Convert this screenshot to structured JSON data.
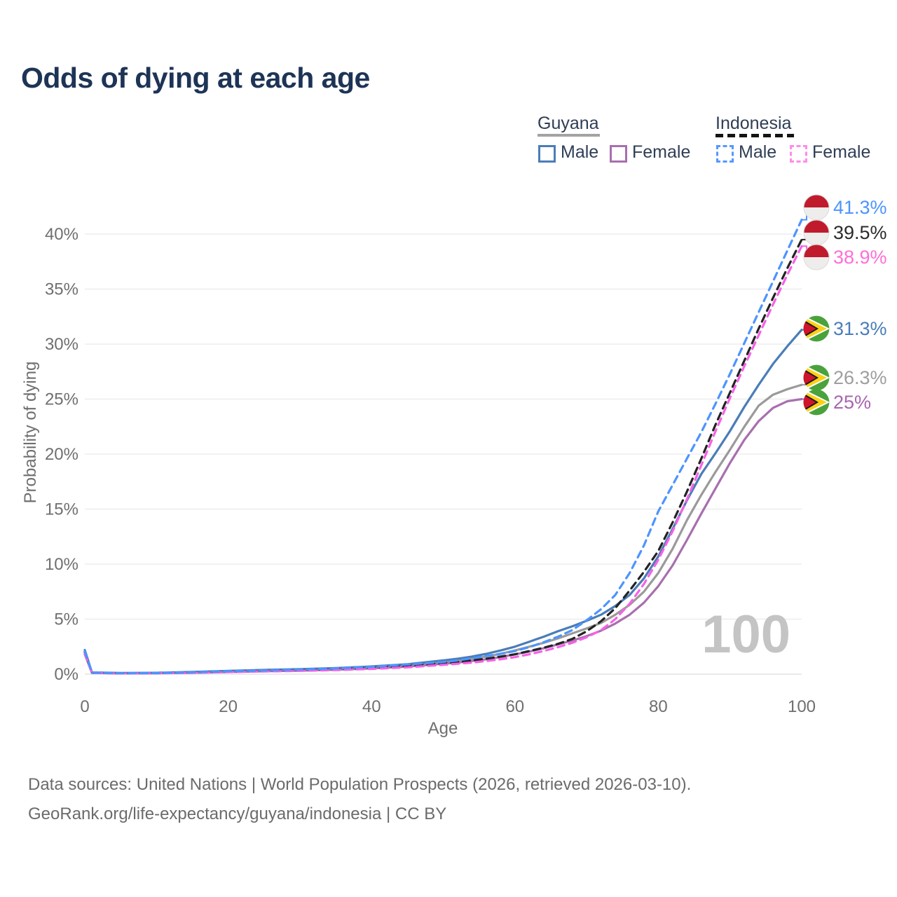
{
  "title": "Odds of dying at each age",
  "watermark": "100",
  "legend": {
    "guyana": {
      "label": "Guyana",
      "male": "Male",
      "female": "Female"
    },
    "indonesia": {
      "label": "Indonesia",
      "male": "Male",
      "female": "Female"
    }
  },
  "footer": {
    "line1": "Data sources: United Nations | World Population Prospects (2026, retrieved 2026-03-10).",
    "line2": "GeoRank.org/life-expectancy/guyana/indonesia | CC BY"
  },
  "colors": {
    "title_text": "#1d3456",
    "axis_text": "#6f6f6f",
    "gridline": "#ededed",
    "watermark": "#c4c4c4",
    "guyana_male": "#4a7db8",
    "guyana_female": "#a86fae",
    "guyana_both": "#9a9a9a",
    "indonesia_male": "#4d94ff",
    "indonesia_female": "#f661e7",
    "indonesia_both": "#232323"
  },
  "chart_data": {
    "type": "line",
    "title": "Odds of dying at each age",
    "xlabel": "Age",
    "ylabel": "Probability of dying",
    "xlim": [
      0,
      100
    ],
    "ylim": [
      0,
      40
    ],
    "grid": "horizontal-only",
    "legend_position": "top-right",
    "x_ticks": {
      "values": [
        0,
        20,
        40,
        60,
        80,
        100
      ],
      "labels": [
        "0",
        "20",
        "40",
        "60",
        "80",
        "100"
      ]
    },
    "y_ticks": {
      "values": [
        0,
        5,
        10,
        15,
        20,
        25,
        30,
        35,
        40
      ],
      "labels": [
        "0%",
        "5%",
        "10%",
        "15%",
        "20%",
        "25%",
        "30%",
        "35%",
        "40%"
      ]
    },
    "ages": [
      0,
      1,
      5,
      10,
      15,
      20,
      25,
      30,
      35,
      40,
      45,
      50,
      52,
      54,
      56,
      58,
      60,
      62,
      64,
      66,
      68,
      70,
      72,
      74,
      76,
      78,
      80,
      82,
      84,
      86,
      88,
      90,
      92,
      94,
      96,
      98,
      100
    ],
    "series": [
      {
        "id": "guyana-total",
        "name": "Guyana (both sexes)",
        "country": "Guyana",
        "style": "solid",
        "color": "#9a9a9a",
        "values": [
          2.0,
          0.13,
          0.085,
          0.1,
          0.16,
          0.25,
          0.32,
          0.38,
          0.47,
          0.6,
          0.78,
          1.1,
          1.22,
          1.4,
          1.6,
          1.85,
          2.15,
          2.5,
          2.85,
          3.25,
          3.7,
          4.15,
          4.65,
          5.4,
          6.3,
          7.5,
          9.2,
          11.4,
          14.0,
          16.3,
          18.4,
          20.4,
          22.5,
          24.4,
          25.4,
          25.9,
          26.3
        ],
        "end_label": "26.3%"
      },
      {
        "id": "guyana-female",
        "name": "Guyana Female",
        "country": "Guyana",
        "style": "solid",
        "color": "#a86fae",
        "values": [
          1.8,
          0.12,
          0.07,
          0.09,
          0.13,
          0.2,
          0.26,
          0.32,
          0.4,
          0.52,
          0.68,
          0.95,
          1.05,
          1.2,
          1.35,
          1.55,
          1.8,
          2.05,
          2.35,
          2.7,
          3.05,
          3.45,
          3.95,
          4.6,
          5.4,
          6.5,
          8.0,
          9.9,
          12.2,
          14.6,
          16.9,
          19.2,
          21.3,
          23.0,
          24.2,
          24.8,
          25.0
        ],
        "end_label": "25%"
      },
      {
        "id": "guyana-male",
        "name": "Guyana Male",
        "country": "Guyana",
        "style": "solid",
        "color": "#4a7db8",
        "values": [
          2.2,
          0.15,
          0.1,
          0.12,
          0.2,
          0.3,
          0.38,
          0.45,
          0.55,
          0.7,
          0.9,
          1.25,
          1.4,
          1.6,
          1.85,
          2.15,
          2.5,
          2.95,
          3.4,
          3.9,
          4.35,
          4.85,
          5.4,
          6.2,
          7.2,
          8.7,
          10.7,
          13.2,
          15.8,
          18.2,
          20.1,
          22.1,
          24.3,
          26.3,
          28.2,
          29.8,
          31.3
        ],
        "end_label": "31.3%"
      },
      {
        "id": "indonesia-total",
        "name": "Indonesia (both sexes)",
        "country": "Indonesia",
        "style": "dashed",
        "color": "#232323",
        "values": [
          2.0,
          0.13,
          0.075,
          0.095,
          0.15,
          0.23,
          0.3,
          0.36,
          0.45,
          0.58,
          0.75,
          1.0,
          1.1,
          1.25,
          1.4,
          1.6,
          1.8,
          2.1,
          2.4,
          2.75,
          3.2,
          3.9,
          4.8,
          6.0,
          7.6,
          9.3,
          11.2,
          13.8,
          16.6,
          19.6,
          22.7,
          25.6,
          28.5,
          31.4,
          34.2,
          36.9,
          39.5
        ],
        "end_label": "39.5%"
      },
      {
        "id": "indonesia-female",
        "name": "Indonesia Female",
        "country": "Indonesia",
        "style": "dashed",
        "color": "#f661e7",
        "values": [
          1.9,
          0.11,
          0.065,
          0.08,
          0.12,
          0.19,
          0.25,
          0.3,
          0.37,
          0.48,
          0.62,
          0.85,
          0.95,
          1.05,
          1.2,
          1.35,
          1.55,
          1.8,
          2.1,
          2.45,
          2.85,
          3.35,
          4.0,
          5.0,
          6.4,
          8.2,
          10.4,
          13.0,
          15.9,
          19.0,
          22.1,
          25.1,
          28.0,
          30.8,
          33.6,
          36.3,
          38.9
        ],
        "end_label": "38.9%"
      },
      {
        "id": "indonesia-male",
        "name": "Indonesia Male",
        "country": "Indonesia",
        "style": "dashed",
        "color": "#4d94ff",
        "values": [
          2.1,
          0.14,
          0.08,
          0.1,
          0.17,
          0.27,
          0.34,
          0.42,
          0.52,
          0.66,
          0.88,
          1.1,
          1.25,
          1.45,
          1.65,
          1.85,
          2.1,
          2.45,
          2.9,
          3.4,
          4.0,
          4.9,
          5.9,
          7.2,
          9.2,
          11.7,
          14.8,
          17.2,
          19.6,
          22.0,
          24.6,
          27.3,
          30.1,
          32.9,
          35.7,
          38.5,
          41.3
        ],
        "end_label": "41.3%"
      }
    ],
    "end_labels": [
      {
        "series": "indonesia-male",
        "text": "41.3%",
        "flag": "indonesia",
        "color": "#4d94ff"
      },
      {
        "series": "indonesia-total",
        "text": "39.5%",
        "flag": "indonesia",
        "color": "#2b2b2b"
      },
      {
        "series": "indonesia-female",
        "text": "38.9%",
        "flag": "indonesia",
        "color": "#ff6ed8"
      },
      {
        "series": "guyana-male",
        "text": "31.3%",
        "flag": "guyana",
        "color": "#4a7db8"
      },
      {
        "series": "guyana-total",
        "text": "26.3%",
        "flag": "guyana",
        "color": "#9e9e9e"
      },
      {
        "series": "guyana-female",
        "text": "25%",
        "flag": "guyana",
        "color": "#a864b0"
      }
    ]
  }
}
